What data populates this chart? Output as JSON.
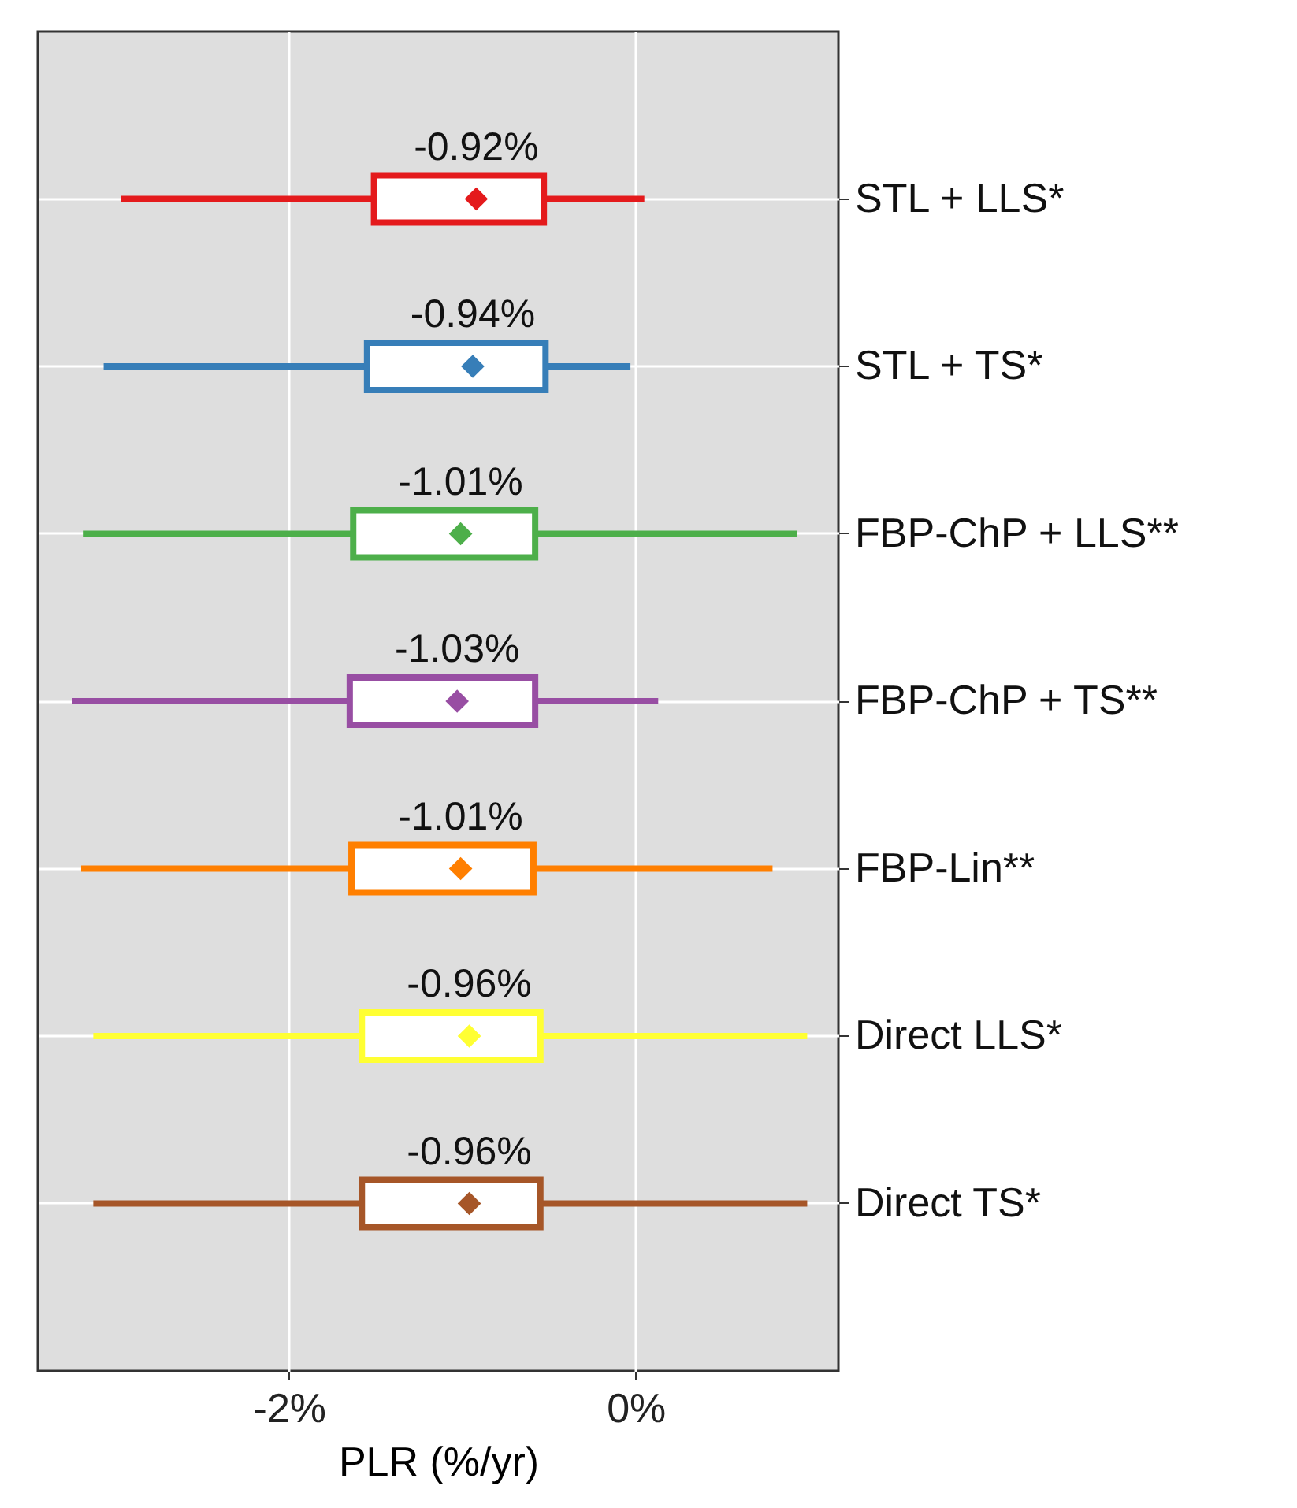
{
  "chart_data": {
    "type": "box",
    "orientation": "horizontal",
    "xlabel": "PLR (%/yr)",
    "categories": [
      "STL + LLS*",
      "STL + TS*",
      "FBP-ChP + LLS**",
      "FBP-ChP + TS**",
      "FBP-Lin**",
      "Direct LLS*",
      "Direct TS*"
    ],
    "colors": [
      "#e41a1c",
      "#377eb8",
      "#4daf4a",
      "#984ea3",
      "#ff7f00",
      "#ffff33",
      "#a65628"
    ],
    "boxes": [
      {
        "low": -2.97,
        "q1": -1.51,
        "median": null,
        "q3": -0.53,
        "high": 0.05,
        "mean": -0.92
      },
      {
        "low": -3.07,
        "q1": -1.55,
        "median": null,
        "q3": -0.52,
        "high": -0.03,
        "mean": -0.94
      },
      {
        "low": -3.19,
        "q1": -1.63,
        "median": null,
        "q3": -0.58,
        "high": 0.93,
        "mean": -1.01
      },
      {
        "low": -3.25,
        "q1": -1.65,
        "median": null,
        "q3": -0.58,
        "high": 0.13,
        "mean": -1.03
      },
      {
        "low": -3.2,
        "q1": -1.64,
        "median": null,
        "q3": -0.59,
        "high": 0.79,
        "mean": -1.01
      },
      {
        "low": -3.13,
        "q1": -1.58,
        "median": null,
        "q3": -0.55,
        "high": 0.99,
        "mean": -0.96
      },
      {
        "low": -3.13,
        "q1": -1.58,
        "median": null,
        "q3": -0.55,
        "high": 0.99,
        "mean": -0.96
      }
    ],
    "value_labels": [
      "-0.92%",
      "-0.94%",
      "-1.01%",
      "-1.03%",
      "-1.01%",
      "-0.96%",
      "-0.96%"
    ],
    "marker": "diamond",
    "xlim": [
      -3.45,
      1.17
    ],
    "xticks": [
      {
        "value": -2,
        "label": "-2%"
      },
      {
        "value": 0,
        "label": "0%"
      }
    ],
    "grid": true
  }
}
